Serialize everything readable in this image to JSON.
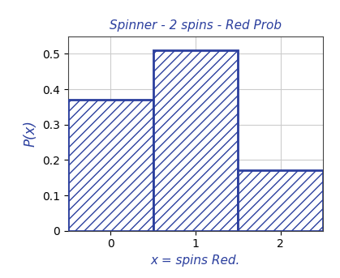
{
  "chart_data": {
    "type": "bar",
    "title": "Spinner - 2 spins - Red Prob",
    "x_label": "x = spins Red.",
    "y_label": "P(x)",
    "categories": [
      "0",
      "1",
      "2"
    ],
    "values": [
      0.37,
      0.51,
      0.17
    ],
    "color": "#2b3f9e",
    "ylim": [
      0,
      0.55
    ],
    "yticks": [
      0,
      0.1,
      0.2,
      0.3,
      0.4,
      0.5
    ],
    "grid": true
  }
}
